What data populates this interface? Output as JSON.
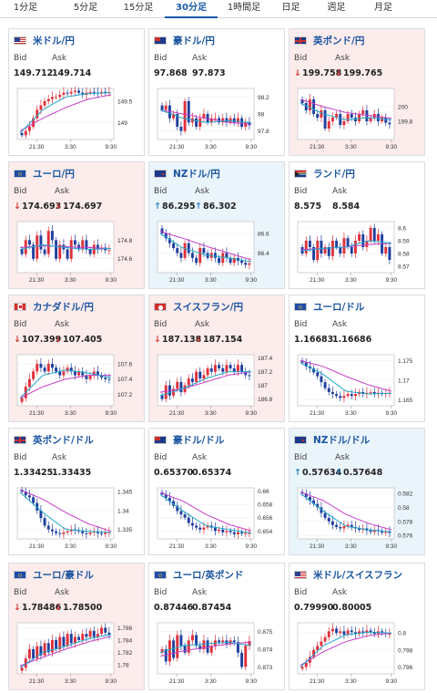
{
  "tabs": [
    {
      "label": "1分足",
      "active": false
    },
    {
      "label": "5分足",
      "active": false
    },
    {
      "label": "15分足",
      "active": false
    },
    {
      "label": "30分足",
      "active": true
    },
    {
      "label": "1時間足",
      "active": false
    },
    {
      "label": "日足",
      "active": false
    },
    {
      "label": "週足",
      "active": false
    },
    {
      "label": "月足",
      "active": false
    }
  ],
  "labels": {
    "bid": "Bid",
    "ask": "Ask"
  },
  "colors": {
    "up_candle": "#e0303a",
    "down_candle": "#1f3f9e",
    "ma_fast": "#22a8c9",
    "ma_slow": "#c63fc8",
    "up_bg": "#eaf4fb",
    "down_bg": "#fcecec",
    "link": "#1b55a0"
  },
  "pairs": [
    {
      "name": "米ドル/円",
      "flag": "us",
      "trend": "none",
      "bid": "149.712",
      "ask": "149.714",
      "chart_data": {
        "type": "candlestick",
        "x_ticks": [
          "21:30",
          "3:30",
          "9:30"
        ],
        "y_ticks": [
          "149.5",
          "149"
        ],
        "y_range": [
          148.6,
          149.8
        ],
        "open": 148.75,
        "closes": [
          148.7,
          148.8,
          148.9,
          149.1,
          149.3,
          149.4,
          149.5,
          149.55,
          149.6,
          149.6,
          149.65,
          149.7,
          149.68,
          149.72,
          149.75,
          149.7,
          149.65,
          149.7,
          149.72,
          149.7,
          149.68,
          149.72,
          149.71,
          149.712
        ],
        "ma_fast": [
          148.75,
          149.3,
          149.6,
          149.68,
          149.7
        ],
        "ma_slow": [
          148.8,
          149.1,
          149.35,
          149.55,
          149.65
        ]
      }
    },
    {
      "name": "豪ドル/円",
      "flag": "au",
      "trend": "none",
      "bid": "97.868",
      "ask": "97.873",
      "chart_data": {
        "type": "candlestick",
        "x_ticks": [
          "21:30",
          "3:30",
          "9:30"
        ],
        "y_ticks": [
          "98.2",
          "98",
          "97.8"
        ],
        "y_range": [
          97.7,
          98.3
        ],
        "open": 98.1,
        "closes": [
          98.05,
          98.1,
          97.95,
          98.0,
          97.85,
          97.8,
          98.15,
          97.9,
          97.95,
          97.85,
          97.95,
          98.0,
          97.9,
          97.95,
          97.95,
          97.9,
          97.95,
          97.9,
          97.95,
          97.9,
          97.95,
          97.85,
          97.9,
          97.868
        ],
        "ma_fast": [
          98.05,
          97.95,
          97.9,
          97.92,
          97.9
        ],
        "ma_slow": [
          98.05,
          98.0,
          97.95,
          97.9,
          97.88
        ]
      }
    },
    {
      "name": "英ポンド/円",
      "flag": "gb",
      "trend": "down",
      "bid": "199.758",
      "ask": "199.765",
      "chart_data": {
        "type": "candlestick",
        "x_ticks": [
          "21:30",
          "3:30",
          "9:30"
        ],
        "y_ticks": [
          "200",
          "199.8"
        ],
        "y_range": [
          199.55,
          200.25
        ],
        "open": 200.1,
        "closes": [
          200.05,
          199.95,
          200.1,
          199.9,
          199.85,
          199.95,
          199.7,
          199.8,
          199.85,
          199.9,
          199.75,
          199.8,
          199.9,
          199.85,
          199.8,
          199.9,
          199.95,
          199.8,
          199.85,
          199.9,
          199.8,
          199.85,
          199.78,
          199.758
        ],
        "ma_fast": [
          200.05,
          199.9,
          199.82,
          199.85,
          199.82
        ],
        "ma_slow": [
          200.1,
          200.0,
          199.92,
          199.88,
          199.84
        ]
      }
    },
    {
      "name": "ユーロ/円",
      "flag": "eu",
      "trend": "down",
      "bid": "174.693",
      "ask": "174.697",
      "chart_data": {
        "type": "candlestick",
        "x_ticks": [
          "21:30",
          "3:30",
          "9:30"
        ],
        "y_ticks": [
          "174.8",
          "174.6"
        ],
        "y_range": [
          174.45,
          175.0
        ],
        "open": 174.7,
        "closes": [
          174.65,
          174.8,
          174.75,
          174.6,
          174.85,
          174.7,
          174.65,
          174.9,
          174.8,
          174.6,
          174.75,
          174.7,
          174.6,
          174.8,
          174.75,
          174.7,
          174.8,
          174.7,
          174.65,
          174.75,
          174.7,
          174.72,
          174.69,
          174.693
        ],
        "ma_fast": [
          174.7,
          174.75,
          174.72,
          174.7,
          174.71
        ],
        "ma_slow": [
          174.72,
          174.74,
          174.73,
          174.72,
          174.71
        ]
      }
    },
    {
      "name": "NZドル/円",
      "flag": "nz",
      "trend": "up",
      "bid": "86.295",
      "ask": "86.302",
      "chart_data": {
        "type": "candlestick",
        "x_ticks": [
          "21:30",
          "3:30",
          "9:30"
        ],
        "y_ticks": [
          "86.6",
          "86.4"
        ],
        "y_range": [
          86.2,
          86.72
        ],
        "open": 86.65,
        "closes": [
          86.6,
          86.55,
          86.5,
          86.45,
          86.4,
          86.35,
          86.5,
          86.4,
          86.35,
          86.3,
          86.45,
          86.4,
          86.35,
          86.4,
          86.35,
          86.3,
          86.4,
          86.35,
          86.3,
          86.35,
          86.32,
          86.3,
          86.28,
          86.295
        ],
        "ma_fast": [
          86.6,
          86.45,
          86.38,
          86.35,
          86.31
        ],
        "ma_slow": [
          86.62,
          86.55,
          86.47,
          86.4,
          86.33
        ]
      }
    },
    {
      "name": "ランド/円",
      "flag": "za",
      "trend": "none",
      "bid": "8.575",
      "ask": "8.584",
      "chart_data": {
        "type": "candlestick",
        "x_ticks": [
          "21:30",
          "3:30",
          "9:30"
        ],
        "y_ticks": [
          "8.6",
          "8.59",
          "8.58",
          "8.57"
        ],
        "y_range": [
          8.565,
          8.605
        ],
        "open": 8.585,
        "closes": [
          8.58,
          8.59,
          8.585,
          8.575,
          8.59,
          8.58,
          8.585,
          8.578,
          8.59,
          8.585,
          8.58,
          8.592,
          8.585,
          8.58,
          8.59,
          8.595,
          8.585,
          8.59,
          8.6,
          8.59,
          8.595,
          8.58,
          8.585,
          8.575
        ],
        "ma_fast": [
          8.582,
          8.584,
          8.585,
          8.59,
          8.588
        ],
        "ma_slow": [
          8.583,
          8.584,
          8.585,
          8.587,
          8.588
        ]
      }
    },
    {
      "name": "カナダドル/円",
      "flag": "ca",
      "trend": "down",
      "bid": "107.399",
      "ask": "107.405",
      "chart_data": {
        "type": "candlestick",
        "x_ticks": [
          "21:30",
          "3:30",
          "9:30"
        ],
        "y_ticks": [
          "107.6",
          "107.4",
          "107.2"
        ],
        "y_range": [
          107.05,
          107.72
        ],
        "open": 107.1,
        "closes": [
          107.15,
          107.3,
          107.4,
          107.5,
          107.6,
          107.55,
          107.5,
          107.6,
          107.55,
          107.5,
          107.45,
          107.5,
          107.55,
          107.5,
          107.45,
          107.5,
          107.45,
          107.4,
          107.45,
          107.5,
          107.45,
          107.42,
          107.4,
          107.399
        ],
        "ma_fast": [
          107.15,
          107.45,
          107.52,
          107.48,
          107.42
        ],
        "ma_slow": [
          107.15,
          107.3,
          107.4,
          107.45,
          107.45
        ]
      }
    },
    {
      "name": "スイスフラン/円",
      "flag": "ch",
      "trend": "down",
      "bid": "187.138",
      "ask": "187.154",
      "chart_data": {
        "type": "candlestick",
        "x_ticks": [
          "21:30",
          "3:30",
          "9:30"
        ],
        "y_ticks": [
          "187.4",
          "187.2",
          "187",
          "186.8"
        ],
        "y_range": [
          186.7,
          187.45
        ],
        "open": 186.85,
        "closes": [
          186.8,
          187.0,
          186.85,
          186.95,
          187.05,
          186.9,
          187.0,
          187.1,
          187.05,
          187.2,
          187.1,
          187.15,
          187.25,
          187.2,
          187.3,
          187.25,
          187.2,
          187.3,
          187.25,
          187.2,
          187.3,
          187.2,
          187.15,
          187.138
        ],
        "ma_fast": [
          186.85,
          186.95,
          187.1,
          187.2,
          187.2
        ],
        "ma_slow": [
          186.9,
          186.95,
          187.05,
          187.15,
          187.2
        ]
      }
    },
    {
      "name": "ユーロ/ドル",
      "flag": "eu_us",
      "trend": "none",
      "bid": "1.16683",
      "ask": "1.16686",
      "chart_data": {
        "type": "candlestick",
        "x_ticks": [
          "21:30",
          "3:30",
          "9:30"
        ],
        "y_ticks": [
          "1.175",
          "1.17",
          "1.165"
        ],
        "y_range": [
          1.1635,
          1.1765
        ],
        "open": 1.175,
        "closes": [
          1.1745,
          1.1735,
          1.173,
          1.172,
          1.171,
          1.1695,
          1.168,
          1.167,
          1.1665,
          1.166,
          1.1655,
          1.166,
          1.1665,
          1.166,
          1.1665,
          1.167,
          1.1665,
          1.1668,
          1.167,
          1.1665,
          1.1668,
          1.1665,
          1.1667,
          1.16683
        ],
        "ma_fast": [
          1.1745,
          1.1715,
          1.1672,
          1.1665,
          1.1667
        ],
        "ma_slow": [
          1.175,
          1.1735,
          1.171,
          1.1688,
          1.1672
        ]
      }
    },
    {
      "name": "英ポンド/ドル",
      "flag": "gb_us",
      "trend": "none",
      "bid": "1.33425",
      "ask": "1.33435",
      "chart_data": {
        "type": "candlestick",
        "x_ticks": [
          "21:30",
          "3:30",
          "9:30"
        ],
        "y_ticks": [
          "1.345",
          "1.34",
          "1.335"
        ],
        "y_range": [
          1.3325,
          1.346
        ],
        "open": 1.3455,
        "closes": [
          1.345,
          1.344,
          1.3435,
          1.342,
          1.34,
          1.338,
          1.336,
          1.335,
          1.3345,
          1.334,
          1.3338,
          1.3342,
          1.3345,
          1.335,
          1.3348,
          1.3345,
          1.334,
          1.3338,
          1.3342,
          1.3345,
          1.334,
          1.3338,
          1.3342,
          1.33425
        ],
        "ma_fast": [
          1.3448,
          1.3395,
          1.335,
          1.3345,
          1.3342
        ],
        "ma_slow": [
          1.3455,
          1.343,
          1.3395,
          1.3365,
          1.3345
        ]
      }
    },
    {
      "name": "豪ドル/ドル",
      "flag": "au_us",
      "trend": "none",
      "bid": "0.65370",
      "ask": "0.65374",
      "chart_data": {
        "type": "candlestick",
        "x_ticks": [
          "21:30",
          "3:30",
          "9:30"
        ],
        "y_ticks": [
          "0.66",
          "0.658",
          "0.656",
          "0.654"
        ],
        "y_range": [
          0.6528,
          0.6605
        ],
        "open": 0.6598,
        "closes": [
          0.6595,
          0.659,
          0.6585,
          0.6578,
          0.657,
          0.6565,
          0.656,
          0.6552,
          0.6548,
          0.6545,
          0.6542,
          0.6545,
          0.6548,
          0.6545,
          0.654,
          0.6542,
          0.6538,
          0.654,
          0.6538,
          0.6535,
          0.6538,
          0.6536,
          0.6537,
          0.6537
        ],
        "ma_fast": [
          0.6595,
          0.657,
          0.6548,
          0.6542,
          0.6537
        ],
        "ma_slow": [
          0.6598,
          0.6585,
          0.6565,
          0.655,
          0.654
        ]
      }
    },
    {
      "name": "NZドル/ドル",
      "flag": "nz_us",
      "trend": "up",
      "bid": "0.57634",
      "ask": "0.57648",
      "chart_data": {
        "type": "candlestick",
        "x_ticks": [
          "21:30",
          "3:30",
          "9:30"
        ],
        "y_ticks": [
          "0.582",
          "0.58",
          "0.578",
          "0.576"
        ],
        "y_range": [
          0.5755,
          0.5828
        ],
        "open": 0.5822,
        "closes": [
          0.582,
          0.5815,
          0.581,
          0.5805,
          0.58,
          0.5792,
          0.5785,
          0.578,
          0.5775,
          0.5772,
          0.577,
          0.5773,
          0.5775,
          0.5772,
          0.577,
          0.5768,
          0.577,
          0.5767,
          0.5765,
          0.5768,
          0.5766,
          0.5764,
          0.5765,
          0.57634
        ],
        "ma_fast": [
          0.582,
          0.5795,
          0.5773,
          0.5768,
          0.5765
        ],
        "ma_slow": [
          0.5822,
          0.581,
          0.579,
          0.5777,
          0.5768
        ]
      }
    },
    {
      "name": "ユーロ/豪ドル",
      "flag": "eu_au",
      "trend": "down",
      "bid": "1.78486",
      "ask": "1.78500",
      "chart_data": {
        "type": "candlestick",
        "x_ticks": [
          "21:30",
          "3:30",
          "9:30"
        ],
        "y_ticks": [
          "1.786",
          "1.784",
          "1.782",
          "1.78"
        ],
        "y_range": [
          1.7785,
          1.7868
        ],
        "open": 1.779,
        "closes": [
          1.7795,
          1.781,
          1.7825,
          1.781,
          1.783,
          1.7815,
          1.7835,
          1.782,
          1.784,
          1.7825,
          1.7845,
          1.783,
          1.785,
          1.7835,
          1.7845,
          1.784,
          1.785,
          1.7845,
          1.7855,
          1.7845,
          1.785,
          1.786,
          1.7852,
          1.78486
        ],
        "ma_fast": [
          1.7795,
          1.782,
          1.783,
          1.7842,
          1.7849
        ],
        "ma_slow": [
          1.7798,
          1.7812,
          1.7825,
          1.7837,
          1.7846
        ]
      }
    },
    {
      "name": "ユーロ/英ポンド",
      "flag": "eu_gb",
      "trend": "none",
      "bid": "0.87446",
      "ask": "0.87454",
      "chart_data": {
        "type": "candlestick",
        "x_ticks": [
          "21:30",
          "3:30",
          "9:30"
        ],
        "y_ticks": [
          "0.875",
          "0.874",
          "0.873"
        ],
        "y_range": [
          0.8726,
          0.8755
        ],
        "open": 0.8738,
        "closes": [
          0.874,
          0.8733,
          0.8745,
          0.8735,
          0.8748,
          0.8742,
          0.8738,
          0.8745,
          0.8748,
          0.8742,
          0.874,
          0.8745,
          0.8738,
          0.8742,
          0.8745,
          0.8744,
          0.8745,
          0.8743,
          0.8745,
          0.8744,
          0.8738,
          0.873,
          0.8742,
          0.87446
        ],
        "ma_fast": [
          0.8738,
          0.8742,
          0.8743,
          0.8744,
          0.8742
        ],
        "ma_slow": [
          0.8736,
          0.8739,
          0.8741,
          0.8743,
          0.8744
        ]
      }
    },
    {
      "name": "米ドル/スイスフラン",
      "flag": "us_ch",
      "trend": "none",
      "bid": "0.79990",
      "ask": "0.80005",
      "chart_data": {
        "type": "candlestick",
        "x_ticks": [
          "21:30",
          "3:30",
          "9:30"
        ],
        "y_ticks": [
          "0.8",
          "0.798",
          "0.796"
        ],
        "y_range": [
          0.7952,
          0.8012
        ],
        "open": 0.7958,
        "closes": [
          0.796,
          0.7965,
          0.7972,
          0.798,
          0.7985,
          0.799,
          0.7995,
          0.8002,
          0.8005,
          0.8,
          0.8002,
          0.7998,
          0.8003,
          0.8001,
          0.7999,
          0.8002,
          0.8,
          0.8003,
          0.8001,
          0.7999,
          0.8002,
          0.8,
          0.7999,
          0.7999
        ],
        "ma_fast": [
          0.796,
          0.7985,
          0.7998,
          0.8001,
          0.8
        ],
        "ma_slow": [
          0.7962,
          0.7978,
          0.799,
          0.7997,
          0.8
        ]
      }
    }
  ]
}
